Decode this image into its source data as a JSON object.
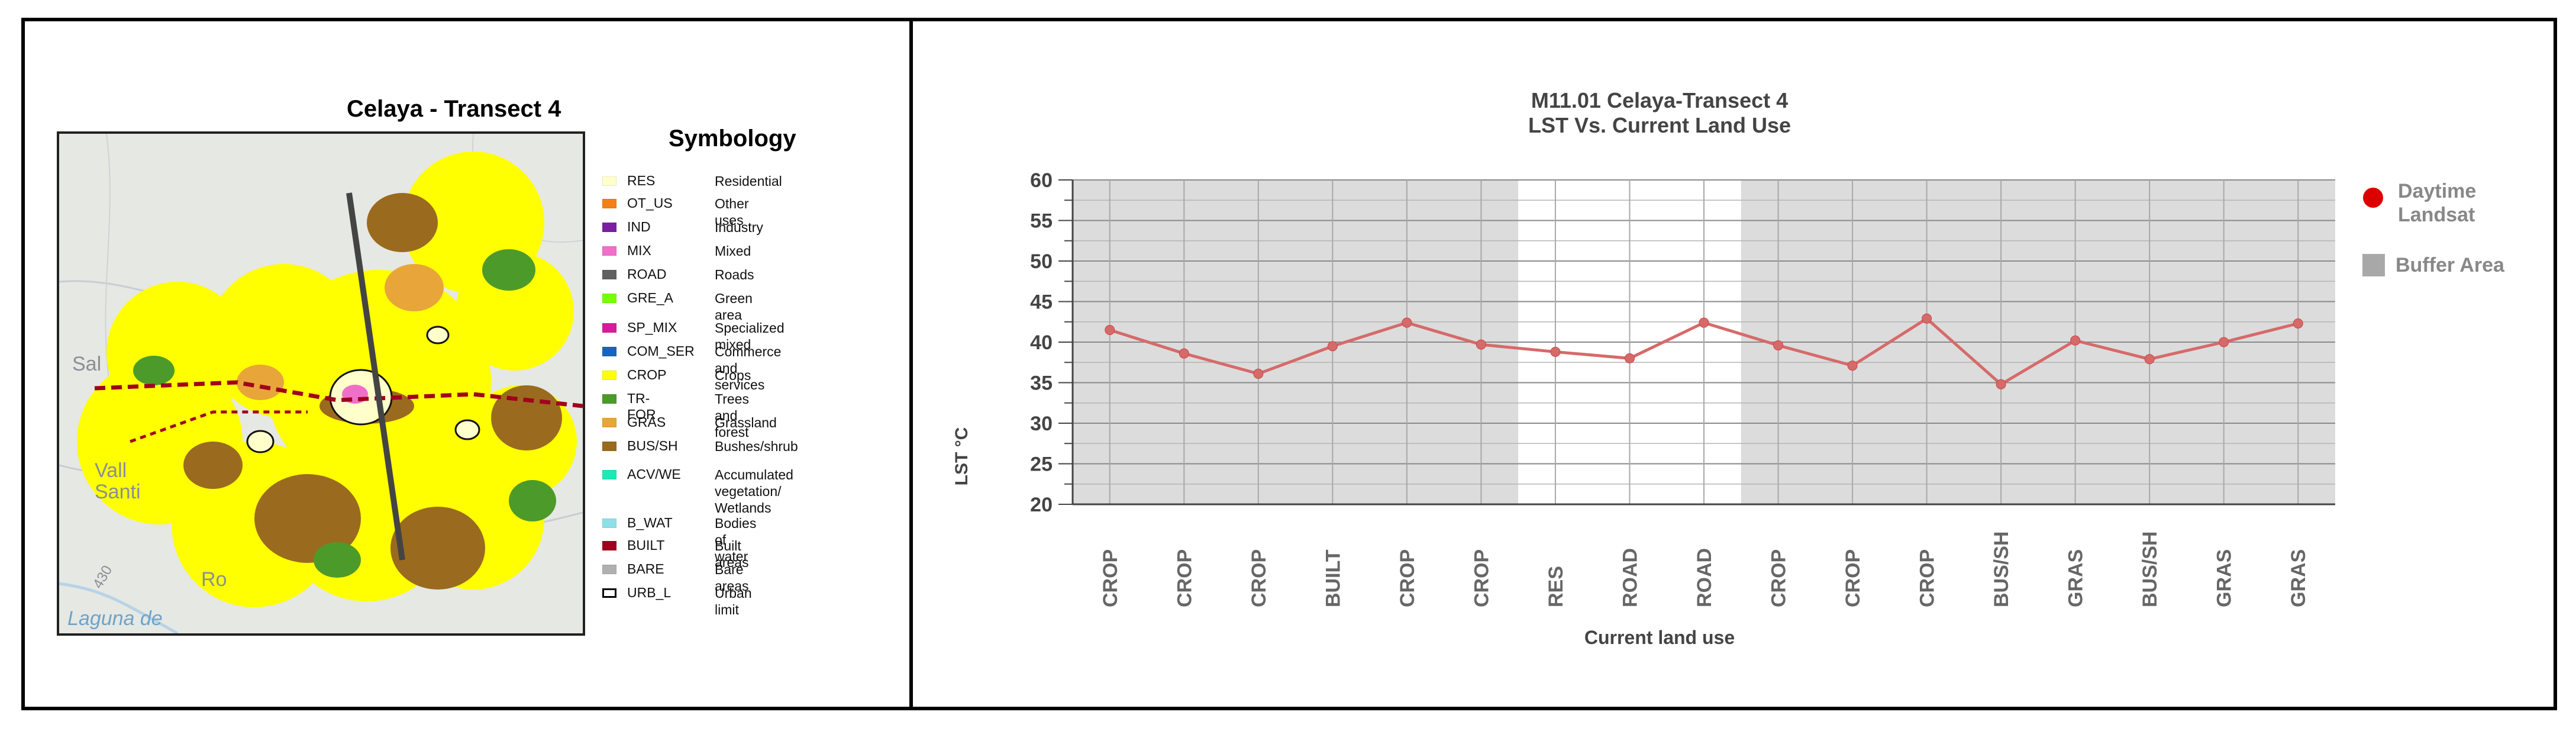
{
  "map_panel": {
    "title": "Celaya - Transect 4",
    "symbology_title": "Symbology",
    "basemap_labels": [
      "Sal",
      "Vall",
      "Santi",
      "Laguna de",
      "Ro",
      "430"
    ],
    "legend": [
      {
        "code": "RES",
        "name": "Residential",
        "color": "#ffffcc"
      },
      {
        "code": "OT_US",
        "name": "Other uses",
        "color": "#f57f17"
      },
      {
        "code": "IND",
        "name": "Industry",
        "color": "#7b1fa2"
      },
      {
        "code": "MIX",
        "name": "Mixed",
        "color": "#f06fc8"
      },
      {
        "code": "ROAD",
        "name": "Roads",
        "color": "#616161"
      },
      {
        "code": "GRE_A",
        "name": "Green area",
        "color": "#76ff03"
      },
      {
        "code": "SP_MIX",
        "name": "Specialized mixed",
        "color": "#d81b9c"
      },
      {
        "code": "COM_SER",
        "name": "Commerce and services",
        "color": "#1565c0"
      },
      {
        "code": "CROP",
        "name": "Crops",
        "color": "#ffff00"
      },
      {
        "code": "TR-FOR",
        "name": "Trees and forest",
        "color": "#4c9a2a"
      },
      {
        "code": "GRAS",
        "name": "Grassland",
        "color": "#e8a53a"
      },
      {
        "code": "BUS/SH",
        "name": "Bushes/shrub",
        "color": "#9a6b1e"
      },
      {
        "code": "ACV/WE",
        "name": "Accumulated vegetation/ Wetlands",
        "color": "#1de9b6"
      },
      {
        "code": "B_WAT",
        "name": "Bodies of water",
        "color": "#8ee0e8"
      },
      {
        "code": "BUILT",
        "name": "Built areas",
        "color": "#a0001e"
      },
      {
        "code": "BARE",
        "name": "Bare areas",
        "color": "#b0b0b0"
      },
      {
        "code": "URB_L",
        "name": "Urban limit",
        "color": "#ffffff"
      }
    ]
  },
  "chart_data": {
    "type": "line",
    "title": "M11.01 Celaya-Transect 4",
    "subtitle": "LST Vs. Current Land Use",
    "xlabel": "Current land use",
    "ylabel": "LST  °C",
    "ylim": [
      20,
      60
    ],
    "y_ticks": [
      20,
      25,
      30,
      35,
      40,
      45,
      50,
      55,
      60
    ],
    "grid": true,
    "legend_position": "right",
    "categories": [
      "CROP",
      "CROP",
      "CROP",
      "BUILT",
      "CROP",
      "CROP",
      "RES",
      "ROAD",
      "ROAD",
      "CROP",
      "CROP",
      "CROP",
      "BUS/SH",
      "GRAS",
      "BUS/SH",
      "GRAS",
      "GRAS"
    ],
    "series": [
      {
        "name": "Daytime Landsat",
        "color": "#d66a6a",
        "marker_color": "#dd0000",
        "values": [
          41.5,
          38.6,
          36.1,
          39.5,
          42.4,
          39.7,
          38.8,
          38.0,
          42.4,
          39.6,
          37.1,
          42.9,
          34.8,
          40.2,
          37.9,
          40.0,
          42.3
        ]
      }
    ],
    "buffer_area": {
      "name": "Buffer Area",
      "color": "#dcdcdc",
      "ranges": [
        [
          0,
          5
        ],
        [
          9,
          16
        ]
      ]
    }
  }
}
